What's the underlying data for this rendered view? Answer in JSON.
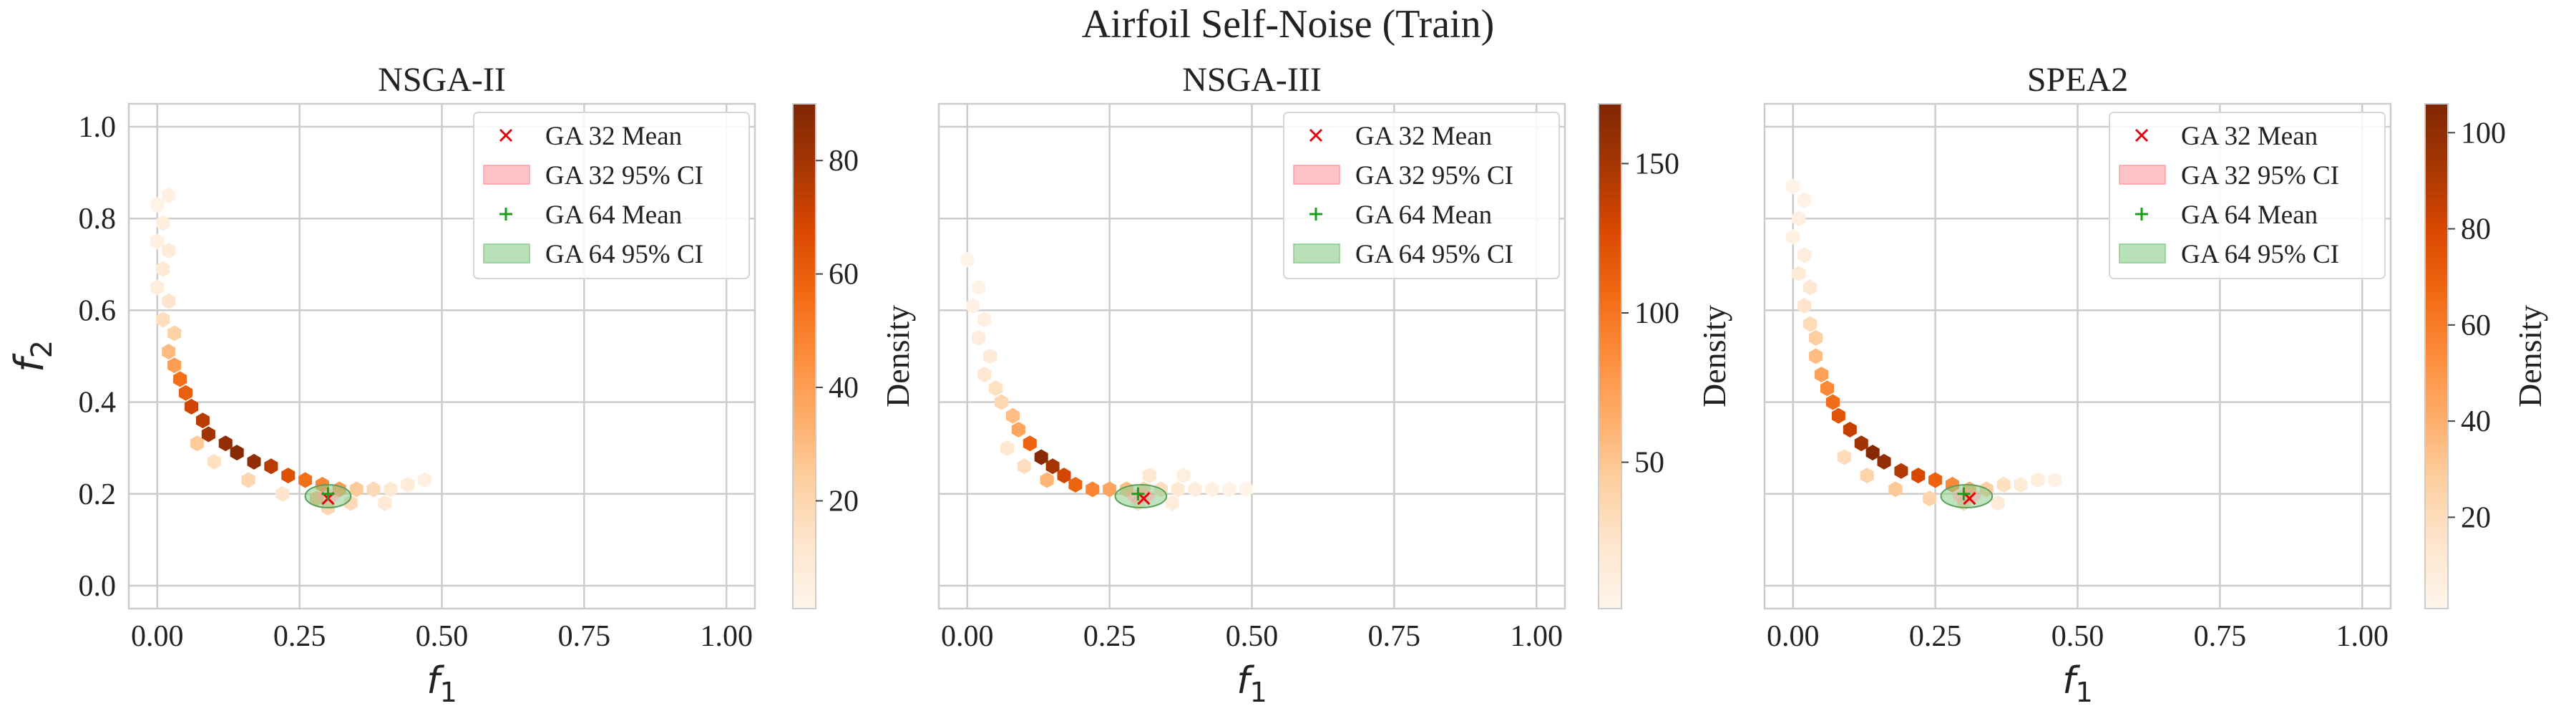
{
  "figure": {
    "suptitle": "Airfoil Self-Noise (Train)"
  },
  "colors": {
    "background": "#ffffff",
    "grid": "#cccccc",
    "frame": "#cccccc",
    "ga32_marker": "#e8000b",
    "ga32_ci_fill": "#ff9da4",
    "ga64_marker": "#1a9e1a",
    "ga64_ci_fill": "#8ccc8c",
    "colormap": [
      "#fff5eb",
      "#fee6ce",
      "#fdd0a2",
      "#fdae6b",
      "#fd8d3c",
      "#f16913",
      "#d94801",
      "#a63603",
      "#7f2704"
    ]
  },
  "legend": {
    "placement": "upper right",
    "entries": [
      {
        "label": "GA 32 Mean",
        "kind": "x-marker",
        "color_key": "ga32_marker"
      },
      {
        "label": "GA 32 95% CI",
        "kind": "patch",
        "color_key": "ga32_ci_fill"
      },
      {
        "label": "GA 64 Mean",
        "kind": "plus-marker",
        "color_key": "ga64_marker"
      },
      {
        "label": "GA 64 95% CI",
        "kind": "patch",
        "color_key": "ga64_ci_fill"
      }
    ]
  },
  "axes_common": {
    "xlabel_main": "f",
    "xlabel_sub": "1",
    "ylabel_main": "f",
    "ylabel_sub": "2",
    "xlim": [
      -0.05,
      1.05
    ],
    "ylim": [
      -0.05,
      1.05
    ],
    "xticks": [
      0.0,
      0.25,
      0.5,
      0.75,
      1.0
    ],
    "xtick_labels": [
      "0.00",
      "0.25",
      "0.50",
      "0.75",
      "1.00"
    ],
    "yticks": [
      0.0,
      0.2,
      0.4,
      0.6,
      0.8,
      1.0
    ],
    "ytick_labels": [
      "0.0",
      "0.2",
      "0.4",
      "0.6",
      "0.8",
      "1.0"
    ],
    "grid": true,
    "colorbar_label": "Density"
  },
  "chart_data": [
    {
      "type": "heatmap",
      "subtype": "hexbin",
      "title": "NSGA-II",
      "show_ylabel": true,
      "show_yticklabels": true,
      "colorbar": {
        "label": "Density",
        "vmin": 1,
        "vmax": 90,
        "ticks": [
          20,
          40,
          60,
          80
        ],
        "tick_labels": [
          "20",
          "40",
          "60",
          "80"
        ]
      },
      "ga32_mean": {
        "f1": 0.3,
        "f2": 0.19
      },
      "ga64_mean": {
        "f1": 0.3,
        "f2": 0.2
      },
      "ga32_ci": {
        "f1": [
          0.28,
          0.32
        ],
        "f2": [
          0.18,
          0.21
        ]
      },
      "ga64_ci": {
        "f1": [
          0.26,
          0.34
        ],
        "f2": [
          0.17,
          0.22
        ]
      },
      "points": [
        {
          "f1": 0.0,
          "f2": 0.83,
          "density": 3
        },
        {
          "f1": 0.02,
          "f2": 0.85,
          "density": 5
        },
        {
          "f1": 0.01,
          "f2": 0.79,
          "density": 6
        },
        {
          "f1": 0.0,
          "f2": 0.75,
          "density": 5
        },
        {
          "f1": 0.02,
          "f2": 0.73,
          "density": 8
        },
        {
          "f1": 0.01,
          "f2": 0.69,
          "density": 9
        },
        {
          "f1": 0.0,
          "f2": 0.65,
          "density": 6
        },
        {
          "f1": 0.02,
          "f2": 0.62,
          "density": 12
        },
        {
          "f1": 0.01,
          "f2": 0.58,
          "density": 16
        },
        {
          "f1": 0.03,
          "f2": 0.55,
          "density": 22
        },
        {
          "f1": 0.02,
          "f2": 0.51,
          "density": 30
        },
        {
          "f1": 0.03,
          "f2": 0.48,
          "density": 40
        },
        {
          "f1": 0.04,
          "f2": 0.45,
          "density": 55
        },
        {
          "f1": 0.05,
          "f2": 0.42,
          "density": 60
        },
        {
          "f1": 0.06,
          "f2": 0.39,
          "density": 70
        },
        {
          "f1": 0.08,
          "f2": 0.36,
          "density": 75
        },
        {
          "f1": 0.09,
          "f2": 0.33,
          "density": 80
        },
        {
          "f1": 0.12,
          "f2": 0.31,
          "density": 85
        },
        {
          "f1": 0.14,
          "f2": 0.29,
          "density": 88
        },
        {
          "f1": 0.17,
          "f2": 0.27,
          "density": 85
        },
        {
          "f1": 0.2,
          "f2": 0.26,
          "density": 75
        },
        {
          "f1": 0.23,
          "f2": 0.24,
          "density": 65
        },
        {
          "f1": 0.26,
          "f2": 0.23,
          "density": 55
        },
        {
          "f1": 0.29,
          "f2": 0.22,
          "density": 48
        },
        {
          "f1": 0.32,
          "f2": 0.21,
          "density": 40
        },
        {
          "f1": 0.35,
          "f2": 0.21,
          "density": 25
        },
        {
          "f1": 0.38,
          "f2": 0.21,
          "density": 18
        },
        {
          "f1": 0.41,
          "f2": 0.21,
          "density": 10
        },
        {
          "f1": 0.44,
          "f2": 0.22,
          "density": 8
        },
        {
          "f1": 0.47,
          "f2": 0.23,
          "density": 5
        },
        {
          "f1": 0.22,
          "f2": 0.2,
          "density": 12
        },
        {
          "f1": 0.28,
          "f2": 0.19,
          "density": 30
        },
        {
          "f1": 0.3,
          "f2": 0.17,
          "density": 20
        },
        {
          "f1": 0.34,
          "f2": 0.18,
          "density": 18
        },
        {
          "f1": 0.4,
          "f2": 0.18,
          "density": 10
        },
        {
          "f1": 0.1,
          "f2": 0.27,
          "density": 15
        },
        {
          "f1": 0.16,
          "f2": 0.23,
          "density": 20
        },
        {
          "f1": 0.07,
          "f2": 0.31,
          "density": 25
        }
      ]
    },
    {
      "type": "heatmap",
      "subtype": "hexbin",
      "title": "NSGA-III",
      "show_ylabel": false,
      "show_yticklabels": false,
      "colorbar": {
        "label": "Density",
        "vmin": 1,
        "vmax": 170,
        "ticks": [
          50,
          100,
          150
        ],
        "tick_labels": [
          "50",
          "100",
          "150"
        ]
      },
      "ga32_mean": {
        "f1": 0.31,
        "f2": 0.19
      },
      "ga64_mean": {
        "f1": 0.3,
        "f2": 0.2
      },
      "ga32_ci": {
        "f1": [
          0.28,
          0.33
        ],
        "f2": [
          0.18,
          0.21
        ]
      },
      "ga64_ci": {
        "f1": [
          0.26,
          0.35
        ],
        "f2": [
          0.17,
          0.22
        ]
      },
      "points": [
        {
          "f1": 0.0,
          "f2": 0.71,
          "density": 3
        },
        {
          "f1": 0.02,
          "f2": 0.65,
          "density": 5
        },
        {
          "f1": 0.01,
          "f2": 0.61,
          "density": 7
        },
        {
          "f1": 0.03,
          "f2": 0.58,
          "density": 9
        },
        {
          "f1": 0.02,
          "f2": 0.54,
          "density": 12
        },
        {
          "f1": 0.04,
          "f2": 0.5,
          "density": 15
        },
        {
          "f1": 0.03,
          "f2": 0.46,
          "density": 20
        },
        {
          "f1": 0.05,
          "f2": 0.43,
          "density": 28
        },
        {
          "f1": 0.06,
          "f2": 0.4,
          "density": 35
        },
        {
          "f1": 0.08,
          "f2": 0.37,
          "density": 55
        },
        {
          "f1": 0.09,
          "f2": 0.34,
          "density": 70
        },
        {
          "f1": 0.11,
          "f2": 0.31,
          "density": 110
        },
        {
          "f1": 0.13,
          "f2": 0.28,
          "density": 165
        },
        {
          "f1": 0.15,
          "f2": 0.26,
          "density": 150
        },
        {
          "f1": 0.17,
          "f2": 0.24,
          "density": 130
        },
        {
          "f1": 0.19,
          "f2": 0.22,
          "density": 110
        },
        {
          "f1": 0.22,
          "f2": 0.21,
          "density": 90
        },
        {
          "f1": 0.25,
          "f2": 0.21,
          "density": 70
        },
        {
          "f1": 0.28,
          "f2": 0.21,
          "density": 55
        },
        {
          "f1": 0.31,
          "f2": 0.21,
          "density": 40
        },
        {
          "f1": 0.34,
          "f2": 0.21,
          "density": 30
        },
        {
          "f1": 0.37,
          "f2": 0.21,
          "density": 20
        },
        {
          "f1": 0.4,
          "f2": 0.21,
          "density": 12
        },
        {
          "f1": 0.43,
          "f2": 0.21,
          "density": 8
        },
        {
          "f1": 0.46,
          "f2": 0.21,
          "density": 5
        },
        {
          "f1": 0.49,
          "f2": 0.21,
          "density": 3
        },
        {
          "f1": 0.32,
          "f2": 0.24,
          "density": 20
        },
        {
          "f1": 0.38,
          "f2": 0.24,
          "density": 10
        },
        {
          "f1": 0.14,
          "f2": 0.23,
          "density": 60
        },
        {
          "f1": 0.1,
          "f2": 0.26,
          "density": 30
        },
        {
          "f1": 0.07,
          "f2": 0.3,
          "density": 20
        },
        {
          "f1": 0.3,
          "f2": 0.18,
          "density": 25
        },
        {
          "f1": 0.36,
          "f2": 0.18,
          "density": 12
        }
      ]
    },
    {
      "type": "heatmap",
      "subtype": "hexbin",
      "title": "SPEA2",
      "show_ylabel": false,
      "show_yticklabels": false,
      "colorbar": {
        "label": "Density",
        "vmin": 1,
        "vmax": 106,
        "ticks": [
          20,
          40,
          60,
          80,
          100
        ],
        "tick_labels": [
          "20",
          "40",
          "60",
          "80",
          "100"
        ]
      },
      "ga32_mean": {
        "f1": 0.31,
        "f2": 0.19
      },
      "ga64_mean": {
        "f1": 0.3,
        "f2": 0.2
      },
      "ga32_ci": {
        "f1": [
          0.28,
          0.33
        ],
        "f2": [
          0.18,
          0.21
        ]
      },
      "ga64_ci": {
        "f1": [
          0.26,
          0.35
        ],
        "f2": [
          0.17,
          0.22
        ]
      },
      "points": [
        {
          "f1": 0.0,
          "f2": 0.87,
          "density": 3
        },
        {
          "f1": 0.02,
          "f2": 0.84,
          "density": 4
        },
        {
          "f1": 0.01,
          "f2": 0.8,
          "density": 6
        },
        {
          "f1": 0.0,
          "f2": 0.76,
          "density": 5
        },
        {
          "f1": 0.02,
          "f2": 0.72,
          "density": 8
        },
        {
          "f1": 0.01,
          "f2": 0.68,
          "density": 10
        },
        {
          "f1": 0.03,
          "f2": 0.65,
          "density": 12
        },
        {
          "f1": 0.02,
          "f2": 0.61,
          "density": 15
        },
        {
          "f1": 0.03,
          "f2": 0.57,
          "density": 20
        },
        {
          "f1": 0.04,
          "f2": 0.54,
          "density": 28
        },
        {
          "f1": 0.04,
          "f2": 0.5,
          "density": 35
        },
        {
          "f1": 0.05,
          "f2": 0.46,
          "density": 45
        },
        {
          "f1": 0.06,
          "f2": 0.43,
          "density": 55
        },
        {
          "f1": 0.07,
          "f2": 0.4,
          "density": 65
        },
        {
          "f1": 0.08,
          "f2": 0.37,
          "density": 75
        },
        {
          "f1": 0.1,
          "f2": 0.34,
          "density": 85
        },
        {
          "f1": 0.12,
          "f2": 0.31,
          "density": 95
        },
        {
          "f1": 0.14,
          "f2": 0.29,
          "density": 104
        },
        {
          "f1": 0.16,
          "f2": 0.27,
          "density": 100
        },
        {
          "f1": 0.19,
          "f2": 0.25,
          "density": 90
        },
        {
          "f1": 0.22,
          "f2": 0.24,
          "density": 80
        },
        {
          "f1": 0.25,
          "f2": 0.23,
          "density": 70
        },
        {
          "f1": 0.28,
          "f2": 0.22,
          "density": 55
        },
        {
          "f1": 0.31,
          "f2": 0.21,
          "density": 40
        },
        {
          "f1": 0.34,
          "f2": 0.21,
          "density": 28
        },
        {
          "f1": 0.37,
          "f2": 0.22,
          "density": 18
        },
        {
          "f1": 0.4,
          "f2": 0.22,
          "density": 10
        },
        {
          "f1": 0.43,
          "f2": 0.23,
          "density": 7
        },
        {
          "f1": 0.46,
          "f2": 0.23,
          "density": 4
        },
        {
          "f1": 0.18,
          "f2": 0.21,
          "density": 30
        },
        {
          "f1": 0.24,
          "f2": 0.19,
          "density": 25
        },
        {
          "f1": 0.3,
          "f2": 0.18,
          "density": 22
        },
        {
          "f1": 0.36,
          "f2": 0.18,
          "density": 10
        },
        {
          "f1": 0.09,
          "f2": 0.28,
          "density": 20
        },
        {
          "f1": 0.13,
          "f2": 0.24,
          "density": 25
        }
      ]
    }
  ]
}
